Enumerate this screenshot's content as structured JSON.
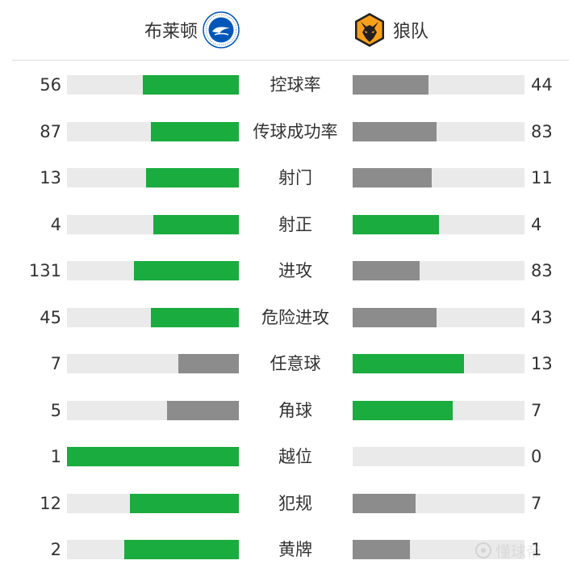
{
  "home_team": {
    "name": "布莱顿",
    "crest": "brighton-crest-icon"
  },
  "away_team": {
    "name": "狼队",
    "crest": "wolves-crest-icon"
  },
  "colors": {
    "leader": "#1aac3e",
    "trailer": "#8c8c8c",
    "track": "#eaeaea"
  },
  "stats": [
    {
      "label": "控球率",
      "home": "56",
      "away": "44"
    },
    {
      "label": "传球成功率",
      "home": "87",
      "away": "83"
    },
    {
      "label": "射门",
      "home": "13",
      "away": "11"
    },
    {
      "label": "射正",
      "home": "4",
      "away": "4"
    },
    {
      "label": "进攻",
      "home": "131",
      "away": "83"
    },
    {
      "label": "危险进攻",
      "home": "45",
      "away": "43"
    },
    {
      "label": "任意球",
      "home": "7",
      "away": "13"
    },
    {
      "label": "角球",
      "home": "5",
      "away": "7"
    },
    {
      "label": "越位",
      "home": "1",
      "away": "0"
    },
    {
      "label": "犯规",
      "home": "12",
      "away": "7"
    },
    {
      "label": "黄牌",
      "home": "2",
      "away": "1"
    }
  ],
  "watermark": {
    "icon": "watermark-logo-icon",
    "text": "懂球帝"
  }
}
